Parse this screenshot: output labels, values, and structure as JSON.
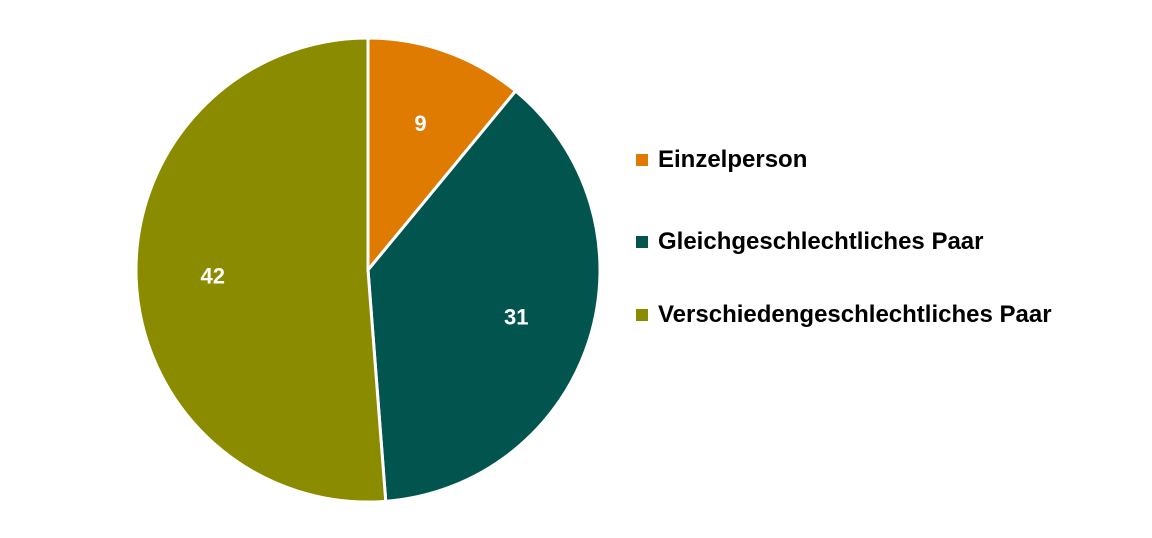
{
  "chart_data": {
    "type": "pie",
    "title": "",
    "categories": [
      "Einzelperson",
      "Gleichgeschlechtliches Paar",
      "Verschiedengeschlechtliches Paar"
    ],
    "values": [
      9,
      31,
      42
    ],
    "colors": [
      "#DE7B00",
      "#02554E",
      "#8B8B00"
    ],
    "data_labels": [
      "9",
      "31",
      "42"
    ],
    "legend": {
      "placement": "right",
      "entries": [
        "Einzelperson",
        "Gleichgeschlechtliches Paar",
        "Verschiedengeschlechtliches Paar"
      ]
    }
  }
}
